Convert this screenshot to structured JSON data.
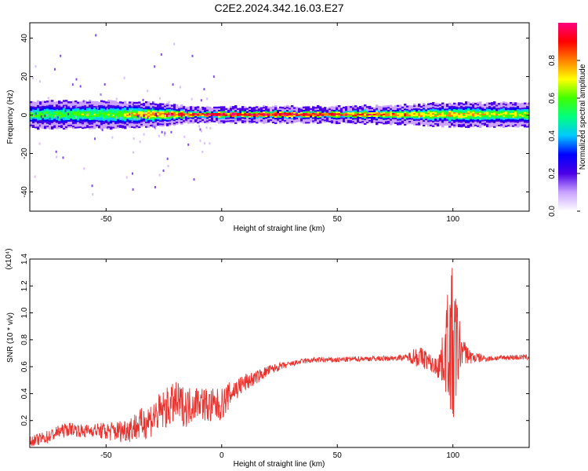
{
  "title": "C2E2.2024.342.16.03.E27",
  "chart_data": [
    {
      "type": "heatmap",
      "xlabel": "Height of straight line (km)",
      "ylabel": "Frequency (Hz)",
      "xlim": [
        -83,
        133
      ],
      "ylim": [
        -50,
        48
      ],
      "xticks": [
        -50,
        0,
        50,
        100
      ],
      "yticks": [
        -40,
        -20,
        0,
        20,
        40
      ],
      "colorbar": {
        "label": "Normalized spectral amplitude",
        "range": [
          0,
          1
        ],
        "ticks": [
          "0.0",
          "0.2",
          "0.4",
          "0.6",
          "0.8"
        ],
        "colors": [
          "#ffffff",
          "#c9a3ff",
          "#4b00e6",
          "#0000ff",
          "#00c8ff",
          "#00ff80",
          "#40ff00",
          "#ffff00",
          "#ff8000",
          "#ff0000",
          "#ff0080"
        ]
      },
      "band": {
        "center_hz": 0,
        "halfwidth_hz": [
          [
            -83,
            5
          ],
          [
            -50,
            5
          ],
          [
            -30,
            4
          ],
          [
            -15,
            2
          ],
          [
            0,
            2
          ],
          [
            50,
            2
          ],
          [
            80,
            3
          ],
          [
            100,
            4
          ],
          [
            133,
            4
          ]
        ],
        "peak_amplitude": [
          [
            -83,
            0.55
          ],
          [
            -50,
            0.6
          ],
          [
            -20,
            0.9
          ],
          [
            0,
            1.0
          ],
          [
            30,
            1.0
          ],
          [
            60,
            0.85
          ],
          [
            90,
            0.75
          ],
          [
            133,
            0.65
          ]
        ]
      }
    },
    {
      "type": "line",
      "xlabel": "Height of straight line (km)",
      "ylabel": "SNR (10 * v/v)",
      "y_multiplier": "(x10⁴)",
      "xlim": [
        -83,
        133
      ],
      "ylim": [
        0,
        1.4
      ],
      "xticks": [
        -50,
        0,
        50,
        100
      ],
      "yticks": [
        0.2,
        0.4,
        0.6,
        0.8,
        1.0,
        1.2,
        1.4
      ],
      "series": [
        {
          "color": "#e8322e",
          "x": [
            -83,
            -75,
            -70,
            -65,
            -60,
            -55,
            -50,
            -45,
            -40,
            -35,
            -30,
            -25,
            -20,
            -15,
            -10,
            -5,
            0,
            5,
            10,
            15,
            20,
            25,
            30,
            35,
            40,
            50,
            60,
            70,
            80,
            84,
            88,
            92,
            96,
            98,
            100,
            102,
            104,
            108,
            115,
            125,
            133
          ],
          "y": [
            0.04,
            0.08,
            0.12,
            0.14,
            0.12,
            0.13,
            0.12,
            0.12,
            0.14,
            0.17,
            0.22,
            0.28,
            0.33,
            0.3,
            0.35,
            0.3,
            0.32,
            0.42,
            0.48,
            0.52,
            0.57,
            0.6,
            0.62,
            0.64,
            0.65,
            0.65,
            0.66,
            0.66,
            0.67,
            0.68,
            0.66,
            0.6,
            0.65,
            0.8,
            0.7,
            0.75,
            0.72,
            0.67,
            0.66,
            0.67,
            0.67
          ],
          "noise": [
            0.04,
            0.05,
            0.05,
            0.05,
            0.05,
            0.05,
            0.07,
            0.08,
            0.1,
            0.12,
            0.14,
            0.15,
            0.16,
            0.15,
            0.12,
            0.14,
            0.12,
            0.09,
            0.07,
            0.05,
            0.04,
            0.03,
            0.02,
            0.02,
            0.02,
            0.02,
            0.02,
            0.02,
            0.02,
            0.08,
            0.08,
            0.06,
            0.2,
            0.45,
            0.65,
            0.35,
            0.1,
            0.05,
            0.02,
            0.02,
            0.02
          ]
        }
      ]
    }
  ]
}
